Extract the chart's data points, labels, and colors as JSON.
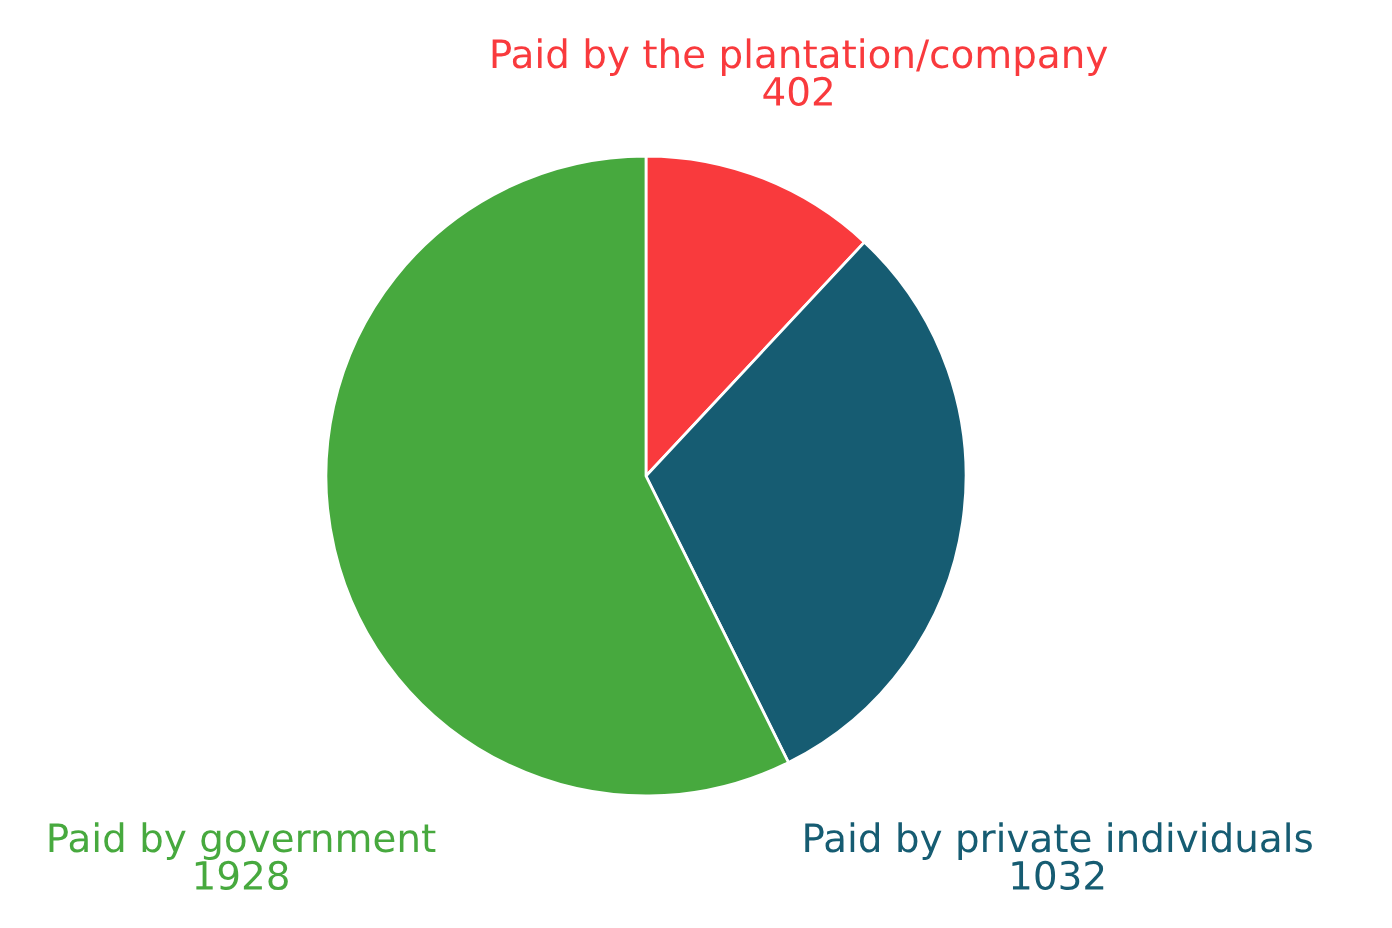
{
  "chart_data": {
    "type": "pie",
    "categories": [
      "Paid by the plantation/company",
      "Paid by private individuals",
      "Paid by government"
    ],
    "values": [
      402,
      1032,
      1928
    ],
    "colors": [
      "#f93a3d",
      "#165c72",
      "#47a93e"
    ],
    "data_labels": true
  }
}
